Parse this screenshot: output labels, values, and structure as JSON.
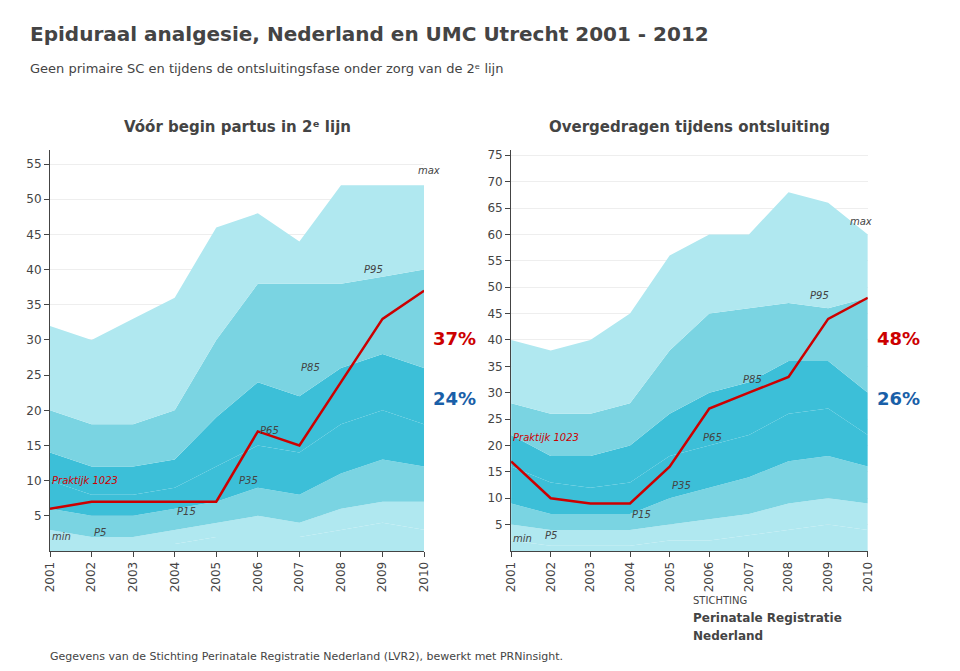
{
  "title": "Epiduraal analgesie, Nederland en UMC Utrecht 2001 - 2012",
  "subtitle": "Geen primaire SC en tijdens de ontsluitingsfase onder zorg van de 2ᵉ lijn",
  "annotations": [
    {
      "text": "Gegevens van de Stichting Perinatale Registratie Nederland (LVR2), bewerkt met PRNinsight."
    },
    {
      "text": "STICHTING"
    },
    {
      "text": "Perinatale Registratie"
    },
    {
      "text": "Nederland"
    }
  ],
  "chart_data": [
    {
      "type": "area",
      "title": "Vóór begin partus in 2ᵉ lijn",
      "x": [
        2001,
        2002,
        2003,
        2004,
        2005,
        2006,
        2007,
        2008,
        2009,
        2010
      ],
      "xlim": [
        2001,
        2010
      ],
      "xticks": [
        2001,
        2002,
        2003,
        2004,
        2005,
        2006,
        2007,
        2008,
        2009,
        2010
      ],
      "ylim": [
        0,
        57
      ],
      "yticks": [
        5,
        10,
        15,
        20,
        25,
        30,
        35,
        40,
        45,
        50,
        55
      ],
      "grid": "y",
      "series": [
        {
          "name": "min",
          "values": [
            0,
            0,
            0,
            0,
            0,
            0,
            0,
            0,
            0,
            0
          ]
        },
        {
          "name": "P5",
          "color": "#b0e8f0",
          "values": [
            1,
            1,
            1,
            1,
            2,
            2,
            2,
            3,
            4,
            3
          ]
        },
        {
          "name": "P15",
          "color": "#b0e8f0",
          "values": [
            3,
            2,
            2,
            3,
            4,
            5,
            4,
            6,
            7,
            7
          ]
        },
        {
          "name": "P35",
          "color": "#7ad4e2",
          "values": [
            6,
            5,
            5,
            6,
            7,
            9,
            8,
            11,
            13,
            12
          ]
        },
        {
          "name": "P65",
          "color": "#3cbfd8",
          "values": [
            10,
            8,
            8,
            9,
            12,
            15,
            14,
            18,
            20,
            18
          ]
        },
        {
          "name": "P85",
          "color": "#3cbfd8",
          "values": [
            14,
            12,
            12,
            13,
            19,
            24,
            22,
            26,
            28,
            26
          ]
        },
        {
          "name": "P95",
          "color": "#7ad4e2",
          "values": [
            20,
            18,
            18,
            20,
            30,
            38,
            38,
            38,
            39,
            40
          ]
        },
        {
          "name": "max",
          "color": "#b0e8f0",
          "values": [
            32,
            30,
            33,
            36,
            46,
            48,
            44,
            52,
            52,
            52
          ]
        },
        {
          "name": "Praktijk 1023",
          "type": "line",
          "color": "#cc0000",
          "values": [
            6,
            7,
            7,
            7,
            7,
            17,
            15,
            24,
            33,
            37
          ]
        }
      ],
      "annotations": [
        {
          "text": "P95",
          "x": 2008.5,
          "y": 39
        },
        {
          "text": "P85",
          "x": 2007,
          "y": 25
        },
        {
          "text": "P65",
          "x": 2006,
          "y": 16
        },
        {
          "text": "P35",
          "x": 2005.5,
          "y": 9
        },
        {
          "text": "P15",
          "x": 2004,
          "y": 4.5
        },
        {
          "text": "P5",
          "x": 2002,
          "y": 1.5
        },
        {
          "text": "min",
          "x": 2001,
          "y": 1
        },
        {
          "text": "max",
          "x": 2009.8,
          "y": 53
        },
        {
          "text": "Praktijk 1023",
          "x": 2001,
          "y": 9,
          "color": "#cc0000"
        },
        {
          "text": "37%",
          "color": "#cc0000"
        },
        {
          "text": "24%",
          "color": "#1a5fa8"
        }
      ]
    },
    {
      "type": "area",
      "title": "Overgedragen tijdens ontsluiting",
      "x": [
        2001,
        2002,
        2003,
        2004,
        2005,
        2006,
        2007,
        2008,
        2009,
        2010
      ],
      "xlim": [
        2001,
        2010
      ],
      "xticks": [
        2001,
        2002,
        2003,
        2004,
        2005,
        2006,
        2007,
        2008,
        2009,
        2010
      ],
      "ylim": [
        0,
        76
      ],
      "yticks": [
        5,
        10,
        15,
        20,
        25,
        30,
        35,
        40,
        45,
        50,
        55,
        60,
        65,
        70,
        75
      ],
      "grid": "y",
      "series": [
        {
          "name": "min",
          "values": [
            0,
            0,
            0,
            0,
            0,
            0,
            0,
            0,
            0,
            0
          ]
        },
        {
          "name": "P5",
          "color": "#b0e8f0",
          "values": [
            2,
            1,
            1,
            1,
            2,
            2,
            3,
            4,
            5,
            4
          ]
        },
        {
          "name": "P15",
          "color": "#b0e8f0",
          "values": [
            5,
            4,
            4,
            4,
            5,
            6,
            7,
            9,
            10,
            9
          ]
        },
        {
          "name": "P35",
          "color": "#7ad4e2",
          "values": [
            9,
            7,
            7,
            7,
            10,
            12,
            14,
            17,
            18,
            16
          ]
        },
        {
          "name": "P65",
          "color": "#3cbfd8",
          "values": [
            16,
            13,
            12,
            13,
            18,
            20,
            22,
            26,
            27,
            22
          ]
        },
        {
          "name": "P85",
          "color": "#3cbfd8",
          "values": [
            22,
            18,
            18,
            20,
            26,
            30,
            32,
            36,
            36,
            30
          ]
        },
        {
          "name": "P95",
          "color": "#7ad4e2",
          "values": [
            28,
            26,
            26,
            28,
            38,
            45,
            46,
            47,
            46,
            48
          ]
        },
        {
          "name": "max",
          "color": "#b0e8f0",
          "values": [
            40,
            38,
            40,
            45,
            56,
            60,
            60,
            68,
            66,
            60
          ]
        },
        {
          "name": "Praktijk 1023",
          "type": "line",
          "color": "#cc0000",
          "values": [
            17,
            10,
            9,
            9,
            16,
            27,
            30,
            33,
            44,
            48
          ]
        }
      ],
      "annotations": [
        {
          "text": "P95",
          "x": 2008.5,
          "y": 47
        },
        {
          "text": "P85",
          "x": 2006.8,
          "y": 31
        },
        {
          "text": "P65",
          "x": 2005.8,
          "y": 20
        },
        {
          "text": "P35",
          "x": 2005,
          "y": 11
        },
        {
          "text": "P15",
          "x": 2004,
          "y": 5.5
        },
        {
          "text": "P5",
          "x": 2001.8,
          "y": 1.5
        },
        {
          "text": "min",
          "x": 2001,
          "y": 1
        },
        {
          "text": "max",
          "x": 2009.5,
          "y": 61
        },
        {
          "text": "Praktijk 1023",
          "x": 2001,
          "y": 20,
          "color": "#cc0000"
        },
        {
          "text": "48%",
          "color": "#cc0000"
        },
        {
          "text": "26%",
          "color": "#1a5fa8"
        }
      ]
    }
  ]
}
